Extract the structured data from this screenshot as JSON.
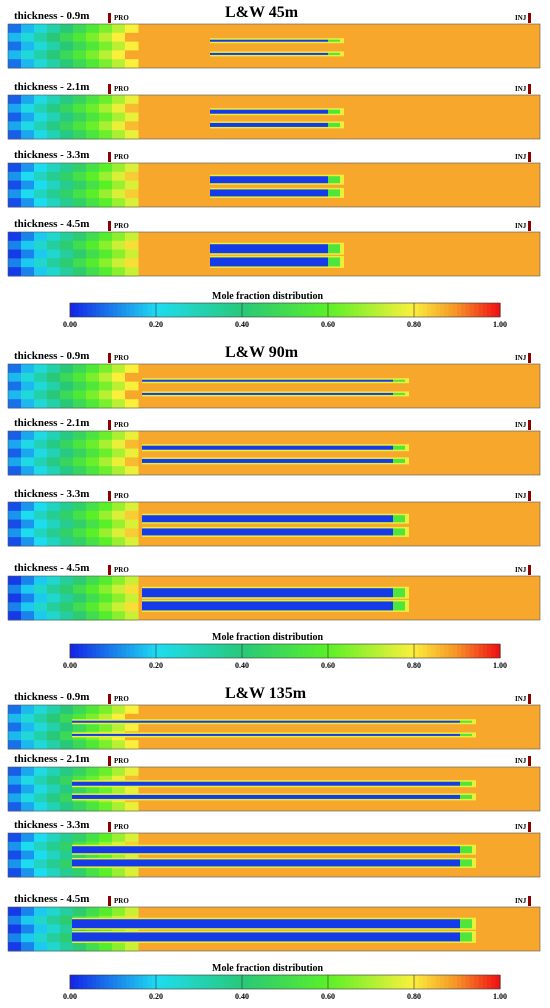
{
  "colorbar": {
    "title": "Mole fraction distribution",
    "ticks": [
      "0.00",
      "0.20",
      "0.40",
      "0.60",
      "0.80",
      "1.00"
    ]
  },
  "groups": [
    {
      "title": "L&W 45m",
      "fracture_length_m": 45,
      "panels": [
        {
          "label": "thickness - 0.9m",
          "thickness_m": 0.9,
          "pro": "PRO",
          "inj": "INJ"
        },
        {
          "label": "thickness - 2.1m",
          "thickness_m": 2.1,
          "pro": "PRO",
          "inj": "INJ"
        },
        {
          "label": "thickness - 3.3m",
          "thickness_m": 3.3,
          "pro": "PRO",
          "inj": "INJ"
        },
        {
          "label": "thickness - 4.5m",
          "thickness_m": 4.5,
          "pro": "PRO",
          "inj": "INJ"
        }
      ]
    },
    {
      "title": "L&W 90m",
      "fracture_length_m": 90,
      "panels": [
        {
          "label": "thickness - 0.9m",
          "thickness_m": 0.9,
          "pro": "PRO",
          "inj": "INJ"
        },
        {
          "label": "thickness - 2.1m",
          "thickness_m": 2.1,
          "pro": "PRO",
          "inj": "INJ"
        },
        {
          "label": "thickness - 3.3m",
          "thickness_m": 3.3,
          "pro": "PRO",
          "inj": "INJ"
        },
        {
          "label": "thickness - 4.5m",
          "thickness_m": 4.5,
          "pro": "PRO",
          "inj": "INJ"
        }
      ]
    },
    {
      "title": "L&W 135m",
      "fracture_length_m": 135,
      "panels": [
        {
          "label": "thickness - 0.9m",
          "thickness_m": 0.9,
          "pro": "PRO",
          "inj": "INJ"
        },
        {
          "label": "thickness - 2.1m",
          "thickness_m": 2.1,
          "pro": "PRO",
          "inj": "INJ"
        },
        {
          "label": "thickness - 3.3m",
          "thickness_m": 3.3,
          "pro": "PRO",
          "inj": "INJ"
        },
        {
          "label": "thickness - 4.5m",
          "thickness_m": 4.5,
          "pro": "PRO",
          "inj": "INJ"
        }
      ]
    }
  ],
  "colors": {
    "background_field": "#f4821e",
    "low": "#1428e6",
    "mid": "#34e85a",
    "high": "#f01414",
    "well_marker": "#8b0000"
  }
}
